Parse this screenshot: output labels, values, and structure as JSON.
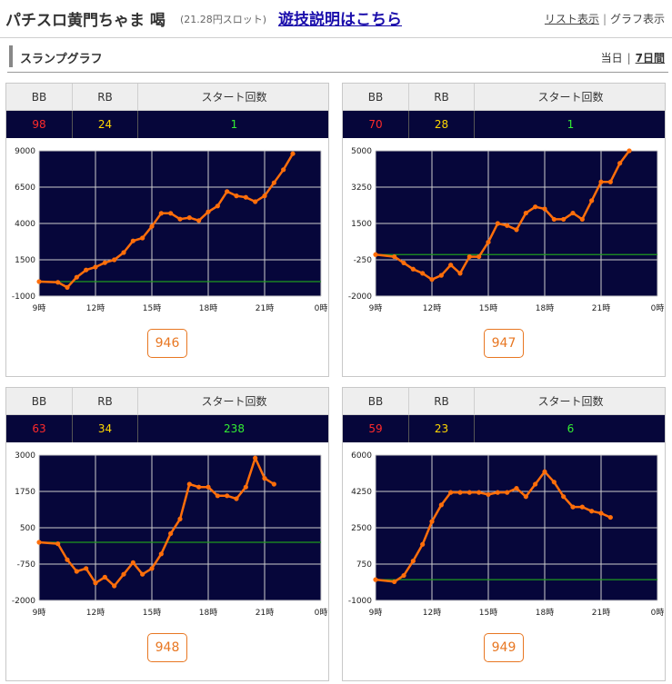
{
  "header": {
    "title": "パチスロ黄門ちゃま 喝",
    "rate": "(21.28円スロット)",
    "help_link": "遊技説明はこちら",
    "list_view": "リスト表示",
    "graph_view": "グラフ表示",
    "separator": "|"
  },
  "section": {
    "title": "スランプグラフ",
    "today": "当日",
    "week": "7日間",
    "separator": "|"
  },
  "table_headers": {
    "bb": "BB",
    "rb": "RB",
    "starts": "スタート回数"
  },
  "colors": {
    "plot_bg": "#06063a",
    "line": "#ff6e0a",
    "baseline": "#1f9a1f",
    "grid": "#cccccc",
    "bb": "#ff2a2a",
    "rb": "#ffd700",
    "starts": "#33ee33",
    "button": "#e87722"
  },
  "machines": [
    {
      "number": "946",
      "bb": "98",
      "rb": "24",
      "starts": "1",
      "chart_data": {
        "type": "line",
        "x_ticks": [
          "9時",
          "12時",
          "15時",
          "18時",
          "21時",
          "0時"
        ],
        "y_ticks": [
          "9000",
          "6500",
          "4000",
          "1500",
          "-1000"
        ],
        "ylim": [
          -1000,
          9000
        ],
        "xlim": [
          9,
          24
        ],
        "baseline": 0,
        "x": [
          9,
          10,
          10.5,
          11,
          11.5,
          12,
          12.5,
          13,
          13.5,
          14,
          14.5,
          15,
          15.5,
          16,
          16.5,
          17,
          17.5,
          18,
          18.5,
          19,
          19.5,
          20,
          20.5,
          21,
          21.5,
          22,
          22.5
        ],
        "y": [
          0,
          -50,
          -400,
          300,
          800,
          1000,
          1300,
          1500,
          2000,
          2800,
          3000,
          3800,
          4700,
          4700,
          4300,
          4400,
          4200,
          4800,
          5200,
          6200,
          5900,
          5800,
          5500,
          5900,
          6800,
          7700,
          8800
        ]
      }
    },
    {
      "number": "947",
      "bb": "70",
      "rb": "28",
      "starts": "1",
      "chart_data": {
        "type": "line",
        "x_ticks": [
          "9時",
          "12時",
          "15時",
          "18時",
          "21時",
          "0時"
        ],
        "y_ticks": [
          "5000",
          "3250",
          "1500",
          "-250",
          "-2000"
        ],
        "ylim": [
          -2000,
          5000
        ],
        "xlim": [
          9,
          24
        ],
        "baseline": 0,
        "x": [
          9,
          10,
          10.5,
          11,
          11.5,
          12,
          12.5,
          13,
          13.5,
          14,
          14.5,
          15,
          15.5,
          16,
          16.5,
          17,
          17.5,
          18,
          18.5,
          19,
          19.5,
          20,
          20.5,
          21,
          21.5,
          22,
          22.5
        ],
        "y": [
          0,
          -100,
          -400,
          -700,
          -900,
          -1200,
          -1000,
          -500,
          -900,
          -100,
          -100,
          600,
          1500,
          1400,
          1200,
          2000,
          2300,
          2200,
          1700,
          1700,
          2000,
          1700,
          2600,
          3500,
          3500,
          4400,
          5000
        ]
      }
    },
    {
      "number": "948",
      "bb": "63",
      "rb": "34",
      "starts": "238",
      "chart_data": {
        "type": "line",
        "x_ticks": [
          "9時",
          "12時",
          "15時",
          "18時",
          "21時",
          "0時"
        ],
        "y_ticks": [
          "3000",
          "1750",
          "500",
          "-750",
          "-2000"
        ],
        "ylim": [
          -2000,
          3000
        ],
        "xlim": [
          9,
          24
        ],
        "baseline": 0,
        "x": [
          9,
          10,
          10.5,
          11,
          11.5,
          12,
          12.5,
          13,
          13.5,
          14,
          14.5,
          15,
          15.5,
          16,
          16.5,
          17,
          17.5,
          18,
          18.5,
          19,
          19.5,
          20,
          20.5,
          21,
          21.5
        ],
        "y": [
          0,
          -50,
          -600,
          -1000,
          -900,
          -1400,
          -1200,
          -1500,
          -1100,
          -700,
          -1100,
          -900,
          -400,
          300,
          800,
          2000,
          1900,
          1900,
          1600,
          1600,
          1500,
          1900,
          2900,
          2200,
          2000
        ]
      }
    },
    {
      "number": "949",
      "bb": "59",
      "rb": "23",
      "starts": "6",
      "chart_data": {
        "type": "line",
        "x_ticks": [
          "9時",
          "12時",
          "15時",
          "18時",
          "21時",
          "0時"
        ],
        "y_ticks": [
          "6000",
          "4250",
          "2500",
          "750",
          "-1000"
        ],
        "ylim": [
          -1000,
          6000
        ],
        "xlim": [
          9,
          24
        ],
        "baseline": 0,
        "x": [
          9,
          10,
          10.5,
          11,
          11.5,
          12,
          12.5,
          13,
          13.5,
          14,
          14.5,
          15,
          15.5,
          16,
          16.5,
          17,
          17.5,
          18,
          18.5,
          19,
          19.5,
          20,
          20.5,
          21,
          21.5
        ],
        "y": [
          0,
          -100,
          200,
          900,
          1700,
          2800,
          3600,
          4200,
          4200,
          4200,
          4200,
          4100,
          4200,
          4200,
          4400,
          4000,
          4600,
          5200,
          4700,
          4000,
          3500,
          3500,
          3300,
          3200,
          3000
        ]
      }
    }
  ]
}
